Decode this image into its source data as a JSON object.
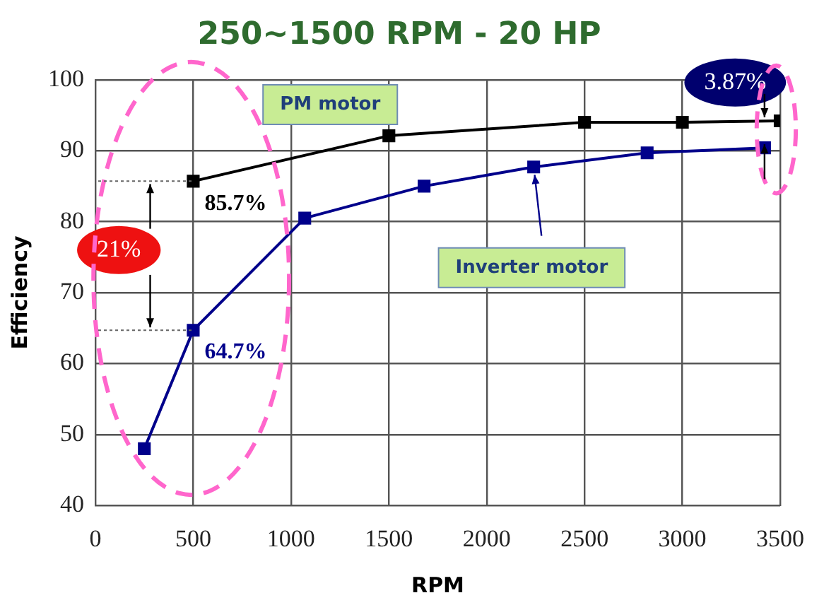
{
  "chart_data": {
    "type": "line",
    "title": "250~1500 RPM - 20 HP",
    "xlabel": "RPM",
    "ylabel": "Efficiency",
    "xlim": [
      0,
      3500
    ],
    "ylim": [
      40,
      100
    ],
    "xticks": [
      0,
      500,
      1000,
      1500,
      2000,
      2500,
      3000,
      3500
    ],
    "yticks": [
      40,
      50,
      60,
      70,
      80,
      90,
      100
    ],
    "grid": true,
    "legend": false,
    "marker": "square",
    "line_style": "solid",
    "series": [
      {
        "name": "PM motor",
        "color": "#000000",
        "x": [
          500,
          1500,
          2500,
          3000,
          3500
        ],
        "values": [
          85.7,
          92.1,
          94,
          94,
          94.2
        ]
      },
      {
        "name": "Inverter motor",
        "color": "#00008b",
        "x": [
          250,
          500,
          1070,
          1680,
          2240,
          2820,
          3420
        ],
        "values": [
          48,
          64.7,
          80.5,
          85,
          87.7,
          89.7,
          90.4
        ]
      }
    ],
    "annotations": [
      {
        "text": "85.7%",
        "x": 500,
        "y": 85.7
      },
      {
        "text": "64.7%",
        "x": 500,
        "y": 64.7
      },
      "21%",
      "3.87%"
    ]
  }
}
